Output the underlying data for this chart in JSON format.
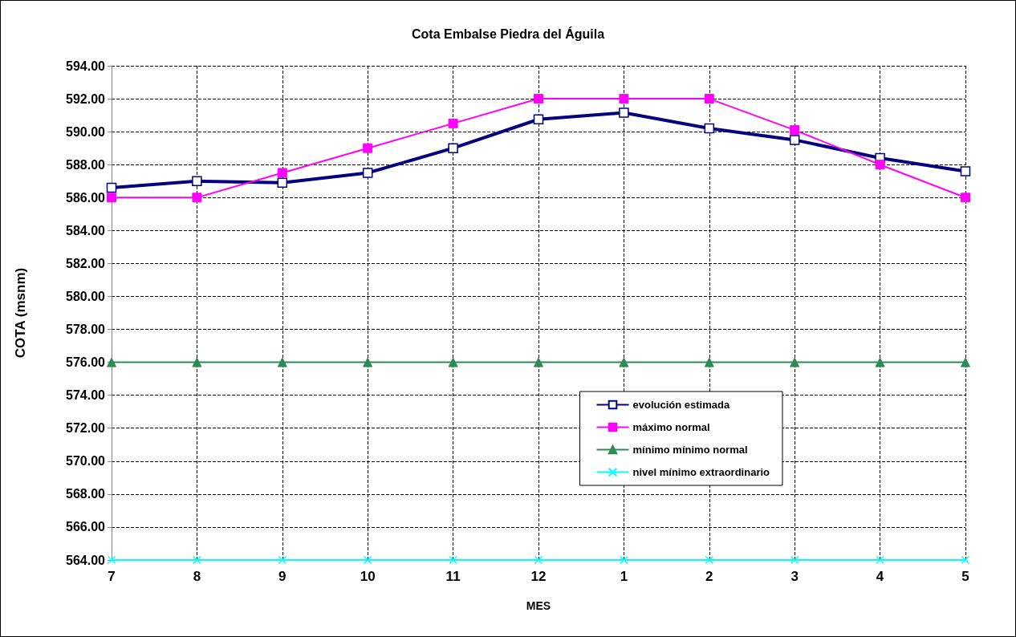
{
  "chart_data": {
    "type": "line",
    "title": "Cota Embalse Piedra del Águila",
    "xlabel": "MES",
    "ylabel": "COTA (msnm)",
    "categories": [
      "7",
      "8",
      "9",
      "10",
      "11",
      "12",
      "1",
      "2",
      "3",
      "4",
      "5"
    ],
    "series": [
      {
        "name": "evolución estimada",
        "color": "#000080",
        "marker": "square",
        "values": [
          586.6,
          587.0,
          586.9,
          587.5,
          589.0,
          590.75,
          591.15,
          590.2,
          589.5,
          588.4,
          587.6
        ]
      },
      {
        "name": "máximo normal",
        "color": "#ff00ff",
        "marker": "square",
        "values": [
          586,
          586,
          587.5,
          589,
          590.5,
          592,
          592,
          592,
          590.1,
          588,
          586
        ]
      },
      {
        "name": "mínimo mínimo normal",
        "color": "#2e8b57",
        "marker": "triangle",
        "values": [
          576,
          576,
          576,
          576,
          576,
          576,
          576,
          576,
          576,
          576,
          576
        ]
      },
      {
        "name": "nivel mínimo extraordinario",
        "color": "#00ffff",
        "marker": "cross",
        "values": [
          564,
          564,
          564,
          564,
          564,
          564,
          564,
          564,
          564,
          564,
          564
        ]
      }
    ],
    "ylim": [
      564,
      594
    ],
    "yticks": [
      {
        "value": 564,
        "label": "564.00"
      },
      {
        "value": 566,
        "label": "566.00"
      },
      {
        "value": 568,
        "label": "568.00"
      },
      {
        "value": 570,
        "label": "570.00"
      },
      {
        "value": 572,
        "label": "572.00"
      },
      {
        "value": 574,
        "label": "574.00"
      },
      {
        "value": 576,
        "label": "576.00"
      },
      {
        "value": 578,
        "label": "578.00"
      },
      {
        "value": 580,
        "label": "580.00"
      },
      {
        "value": 582,
        "label": "582.00"
      },
      {
        "value": 584,
        "label": "584.00"
      },
      {
        "value": 586,
        "label": "586.00"
      },
      {
        "value": 588,
        "label": "588.00"
      },
      {
        "value": 590,
        "label": "590.00"
      },
      {
        "value": 592,
        "label": "592.00"
      },
      {
        "value": 594,
        "label": "594.00"
      }
    ],
    "grid": true,
    "legend": "bottom right",
    "line_style": "solid"
  }
}
